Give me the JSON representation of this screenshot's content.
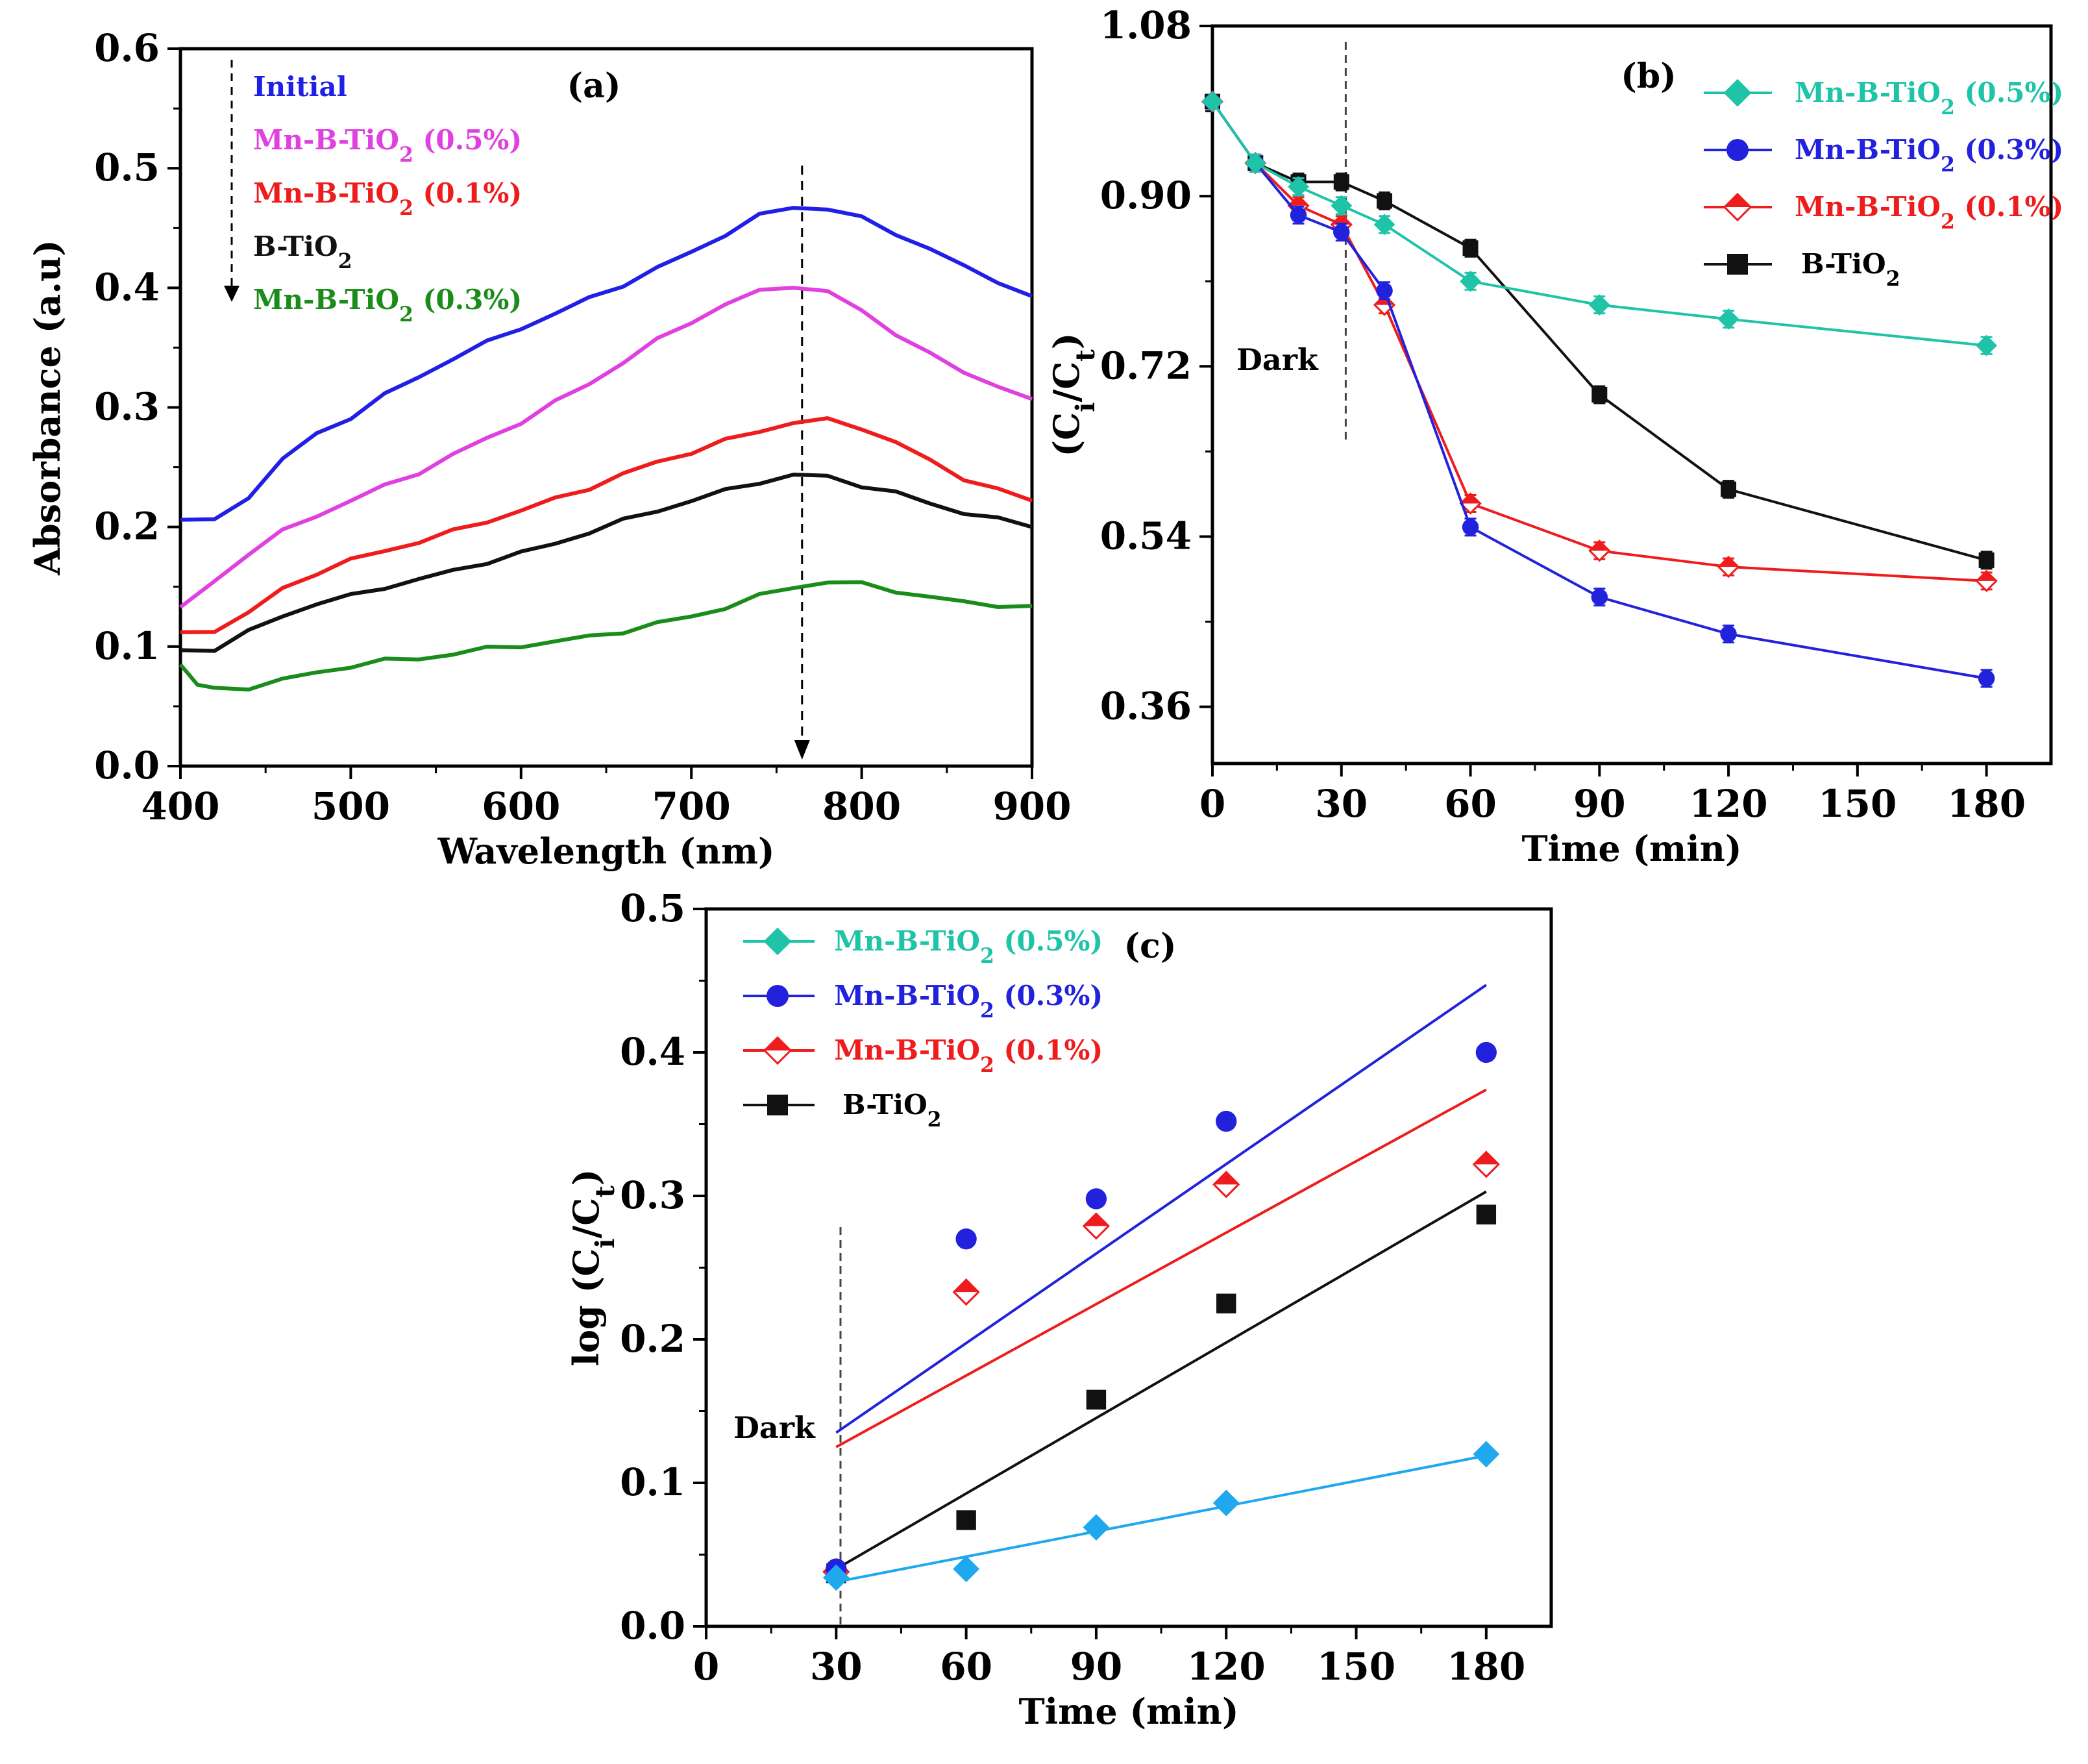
{
  "chart_data": [
    {
      "id": "a",
      "type": "line",
      "panel_label": "(a)",
      "xlabel": "Wavelength (nm)",
      "ylabel": "Absorbance (a.u)",
      "xlim": [
        400,
        900
      ],
      "ylim": [
        0.0,
        0.6
      ],
      "xticks": [
        400,
        500,
        600,
        700,
        800,
        900
      ],
      "yticks": [
        "0.0",
        "0.1",
        "0.2",
        "0.3",
        "0.4",
        "0.5",
        "0.6"
      ],
      "peak_marker_x": 765,
      "legend_position": "top-left",
      "series": [
        {
          "name": "Initial",
          "color": "#1f1fe6",
          "x": [
            400,
            420,
            440,
            460,
            480,
            500,
            520,
            540,
            560,
            580,
            600,
            620,
            640,
            660,
            680,
            700,
            720,
            740,
            760,
            780,
            800,
            820,
            840,
            860,
            880,
            900
          ],
          "values": [
            0.206,
            0.205,
            0.226,
            0.256,
            0.278,
            0.292,
            0.31,
            0.326,
            0.341,
            0.354,
            0.367,
            0.378,
            0.391,
            0.403,
            0.416,
            0.43,
            0.445,
            0.46,
            0.468,
            0.466,
            0.458,
            0.446,
            0.432,
            0.418,
            0.406,
            0.393
          ]
        },
        {
          "name": "Mn-B-TiO2 (0.5%)",
          "color": "#e040e0",
          "x": [
            400,
            420,
            440,
            460,
            480,
            500,
            520,
            540,
            560,
            580,
            600,
            620,
            640,
            660,
            680,
            700,
            720,
            740,
            760,
            780,
            800,
            820,
            840,
            860,
            880,
            900
          ],
          "values": [
            0.133,
            0.155,
            0.178,
            0.196,
            0.21,
            0.222,
            0.234,
            0.246,
            0.26,
            0.274,
            0.288,
            0.304,
            0.32,
            0.338,
            0.356,
            0.372,
            0.386,
            0.397,
            0.402,
            0.396,
            0.381,
            0.362,
            0.344,
            0.33,
            0.318,
            0.307
          ]
        },
        {
          "name": "Mn-B-TiO2 (0.1%)",
          "color": "#ee1c1c",
          "x": [
            400,
            420,
            440,
            460,
            480,
            500,
            520,
            540,
            560,
            580,
            600,
            620,
            640,
            660,
            680,
            700,
            720,
            740,
            760,
            780,
            800,
            820,
            840,
            860,
            880,
            900
          ],
          "values": [
            0.112,
            0.114,
            0.128,
            0.148,
            0.162,
            0.172,
            0.18,
            0.188,
            0.196,
            0.205,
            0.214,
            0.223,
            0.233,
            0.244,
            0.254,
            0.263,
            0.272,
            0.28,
            0.288,
            0.289,
            0.283,
            0.271,
            0.255,
            0.241,
            0.231,
            0.222
          ]
        },
        {
          "name": "B-TiO2",
          "color": "#111111",
          "x": [
            400,
            420,
            440,
            460,
            480,
            500,
            520,
            540,
            560,
            580,
            600,
            620,
            640,
            660,
            680,
            700,
            720,
            740,
            760,
            780,
            800,
            820,
            840,
            860,
            880,
            900
          ],
          "values": [
            0.097,
            0.098,
            0.112,
            0.126,
            0.136,
            0.142,
            0.15,
            0.156,
            0.163,
            0.171,
            0.178,
            0.186,
            0.196,
            0.205,
            0.214,
            0.222,
            0.23,
            0.238,
            0.243,
            0.242,
            0.235,
            0.228,
            0.22,
            0.212,
            0.206,
            0.2
          ]
        },
        {
          "name": "Mn-B-TiO2 (0.3%)",
          "color": "#1a8c1a",
          "x": [
            400,
            410,
            420,
            440,
            460,
            480,
            500,
            520,
            540,
            560,
            580,
            600,
            620,
            640,
            660,
            680,
            700,
            720,
            740,
            760,
            780,
            800,
            820,
            840,
            860,
            880,
            900
          ],
          "values": [
            0.085,
            0.068,
            0.064,
            0.066,
            0.072,
            0.078,
            0.084,
            0.088,
            0.09,
            0.094,
            0.098,
            0.101,
            0.104,
            0.108,
            0.113,
            0.119,
            0.125,
            0.133,
            0.142,
            0.15,
            0.154,
            0.152,
            0.147,
            0.141,
            0.137,
            0.135,
            0.134
          ]
        }
      ]
    },
    {
      "id": "b",
      "type": "line",
      "panel_label": "(b)",
      "xlabel": "Time (min)",
      "ylabel": "(Ci/Ct)",
      "xlim": [
        0,
        195
      ],
      "ylim": [
        0.3,
        1.08
      ],
      "xticks": [
        0,
        30,
        60,
        90,
        120,
        150,
        180
      ],
      "yticks": [
        "0.36",
        "0.54",
        "0.72",
        "0.90",
        "1.08"
      ],
      "dark_line_x": 31,
      "annotation": "Dark",
      "legend_position": "top-right",
      "x": [
        0,
        10,
        20,
        30,
        40,
        60,
        90,
        120,
        180
      ],
      "series": [
        {
          "name": "Mn-B-TiO2 (0.5%)",
          "color": "#1fc4a8",
          "marker": "diamond",
          "values": [
            1.0,
            0.935,
            0.91,
            0.89,
            0.87,
            0.81,
            0.785,
            0.77,
            0.742
          ]
        },
        {
          "name": "Mn-B-TiO2 (0.3%)",
          "color": "#2222dd",
          "marker": "circle",
          "values": [
            1.0,
            0.935,
            0.88,
            0.862,
            0.8,
            0.55,
            0.476,
            0.437,
            0.39
          ]
        },
        {
          "name": "Mn-B-TiO2 (0.1%)",
          "color": "#ee1c1c",
          "marker": "half-diamond",
          "values": [
            1.0,
            0.935,
            0.89,
            0.87,
            0.785,
            0.575,
            0.525,
            0.508,
            0.493
          ]
        },
        {
          "name": "B-TiO2",
          "color": "#111111",
          "marker": "square",
          "values": [
            1.0,
            0.935,
            0.915,
            0.915,
            0.895,
            0.845,
            0.69,
            0.59,
            0.515
          ]
        }
      ]
    },
    {
      "id": "c",
      "type": "scatter",
      "panel_label": "(c)",
      "xlabel": "Time (min)",
      "ylabel": "log (Ci/Ct)",
      "xlim": [
        0,
        195
      ],
      "ylim": [
        0.0,
        0.5
      ],
      "xticks": [
        0,
        30,
        60,
        90,
        120,
        150,
        180
      ],
      "yticks": [
        "0.0",
        "0.1",
        "0.2",
        "0.3",
        "0.4",
        "0.5"
      ],
      "dark_line_x": 31,
      "annotation": "Dark",
      "legend_position": "top-left",
      "x": [
        30,
        60,
        90,
        120,
        180
      ],
      "series": [
        {
          "name": "Mn-B-TiO2 (0.5%)",
          "color": "#1fc4a8",
          "point_color": "#1fa8ee",
          "marker": "diamond",
          "values": [
            0.034,
            0.04,
            0.069,
            0.086,
            0.12
          ],
          "fit": [
            0.031,
            0.119
          ]
        },
        {
          "name": "Mn-B-TiO2 (0.3%)",
          "color": "#2222dd",
          "marker": "circle",
          "values": [
            0.04,
            0.27,
            0.298,
            0.352,
            0.4
          ],
          "fit": [
            0.135,
            0.447
          ]
        },
        {
          "name": "Mn-B-TiO2 (0.1%)",
          "color": "#ee1c1c",
          "marker": "half-diamond",
          "values": [
            0.038,
            0.233,
            0.279,
            0.308,
            0.322
          ],
          "fit": [
            0.125,
            0.374
          ]
        },
        {
          "name": "B-TiO2",
          "color": "#111111",
          "marker": "square",
          "values": [
            0.037,
            0.074,
            0.158,
            0.225,
            0.287
          ],
          "fit": [
            0.04,
            0.303
          ]
        }
      ]
    }
  ]
}
